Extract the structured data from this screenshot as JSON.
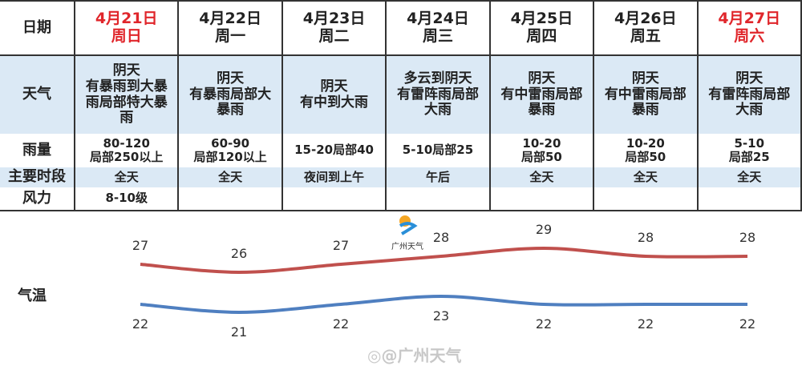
{
  "table": {
    "row_labels": {
      "date": "日期",
      "weather": "天气",
      "rain": "雨量",
      "period": "主要时段",
      "wind": "风力"
    },
    "days": [
      {
        "date": "4月21日",
        "weekday": "周日",
        "weekend": true,
        "weather": [
          "阴天",
          "有暴雨到大暴",
          "雨局部特大暴",
          "雨"
        ],
        "rain": [
          "80-120",
          "局部250以上"
        ],
        "period": "全天",
        "wind": "8-10级"
      },
      {
        "date": "4月22日",
        "weekday": "周一",
        "weekend": false,
        "weather": [
          "阴天",
          "有暴雨局部大",
          "暴雨"
        ],
        "rain": [
          "60-90",
          "局部120以上"
        ],
        "period": "全天",
        "wind": ""
      },
      {
        "date": "4月23日",
        "weekday": "周二",
        "weekend": false,
        "weather": [
          "阴天",
          "有中到大雨"
        ],
        "rain": [
          "15-20局部40"
        ],
        "period": "夜间到上午",
        "wind": ""
      },
      {
        "date": "4月24日",
        "weekday": "周三",
        "weekend": false,
        "weather": [
          "多云到阴天",
          "有雷阵雨局部",
          "大雨"
        ],
        "rain": [
          "5-10局部25"
        ],
        "period": "午后",
        "wind": ""
      },
      {
        "date": "4月25日",
        "weekday": "周四",
        "weekend": false,
        "weather": [
          "阴天",
          "有中雷雨局部",
          "暴雨"
        ],
        "rain": [
          "10-20",
          "局部50"
        ],
        "period": "全天",
        "wind": ""
      },
      {
        "date": "4月26日",
        "weekday": "周五",
        "weekend": false,
        "weather": [
          "阴天",
          "有中雷雨局部",
          "暴雨"
        ],
        "rain": [
          "10-20",
          "局部50"
        ],
        "period": "全天",
        "wind": ""
      },
      {
        "date": "4月27日",
        "weekday": "周六",
        "weekend": true,
        "weather": [
          "阴天",
          "有雷阵雨局部",
          "大雨"
        ],
        "rain": [
          "5-10",
          "局部25"
        ],
        "period": "全天",
        "wind": ""
      }
    ]
  },
  "chart_data": {
    "type": "line",
    "row_label": "气温",
    "categories": [
      "4月21日",
      "4月22日",
      "4月23日",
      "4月24日",
      "4月25日",
      "4月26日",
      "4月27日"
    ],
    "series": [
      {
        "values": [
          27,
          26,
          27,
          28,
          29,
          28,
          28
        ],
        "color": "#c0504d"
      },
      {
        "values": [
          22,
          21,
          22,
          23,
          22,
          22,
          22
        ],
        "color": "#4f7fc0"
      }
    ]
  },
  "logo_text": "广州天气",
  "watermark": "@广州天气",
  "colors": {
    "weekend": "#e0262b",
    "band": "#dbe9f5"
  }
}
